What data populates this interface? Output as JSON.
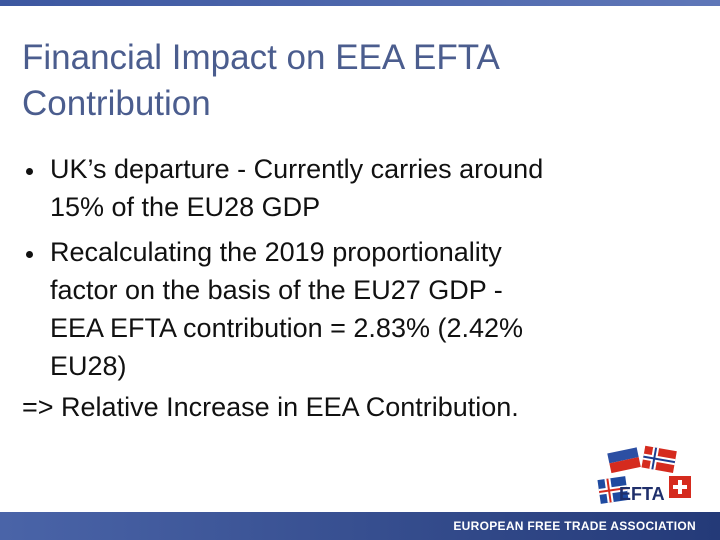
{
  "header": {
    "title_lines": [
      "Financial Impact on EEA EFTA",
      "Contribution"
    ]
  },
  "bullets": [
    {
      "lines": [
        "UK’s departure - Currently carries around",
        "15% of the EU28 GDP"
      ]
    },
    {
      "lines": [
        "Recalculating the 2019 proportionality",
        "factor on the basis of the EU27 GDP -",
        "EEA EFTA contribution = 2.83% (2.42%",
        "EU28)"
      ]
    }
  ],
  "conclusion": "=> Relative Increase in EEA Contribution.",
  "logo": {
    "text": "EFTA"
  },
  "footer": {
    "text": "EUROPEAN FREE TRADE ASSOCIATION"
  }
}
